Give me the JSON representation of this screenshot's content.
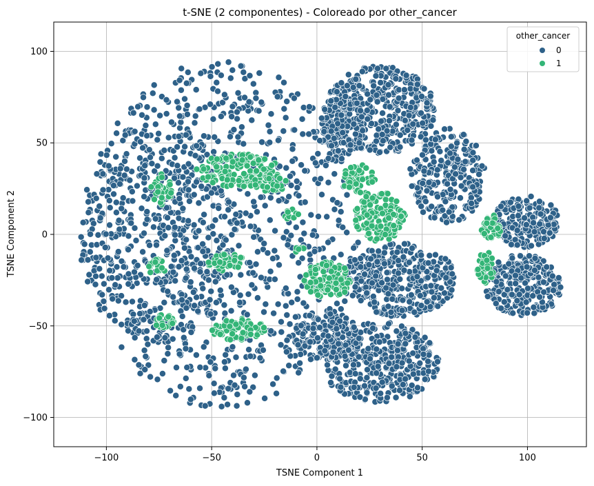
{
  "chart_data": {
    "type": "scatter",
    "title": "t-SNE (2 componentes) - Coloreado por other_cancer",
    "xlabel": "TSNE Component 1",
    "ylabel": "TSNE Component 2",
    "xlim": [
      -125,
      128
    ],
    "ylim": [
      -116,
      116
    ],
    "x_ticks": [
      -100,
      -50,
      0,
      50,
      100
    ],
    "y_ticks": [
      -100,
      -50,
      0,
      50,
      100
    ],
    "x_tick_labels": [
      "−100",
      "−50",
      "0",
      "50",
      "100"
    ],
    "y_tick_labels": [
      "−100",
      "−50",
      "0",
      "50",
      "100"
    ],
    "grid": true,
    "legend": {
      "title": "other_cancer",
      "placement": "top-right",
      "entries": [
        {
          "label": "0",
          "color": "#2e6189"
        },
        {
          "label": "1",
          "color": "#33b577"
        }
      ]
    },
    "series": [
      {
        "name": "0",
        "color": "#2e6189",
        "clusters": [
          {
            "x": 30,
            "y": 68,
            "rx": 26,
            "ry": 24,
            "n": 420
          },
          {
            "x": 62,
            "y": 32,
            "rx": 18,
            "ry": 26,
            "n": 260
          },
          {
            "x": 99,
            "y": 7,
            "rx": 16,
            "ry": 14,
            "n": 200
          },
          {
            "x": 98,
            "y": -28,
            "rx": 18,
            "ry": 17,
            "n": 260
          },
          {
            "x": 40,
            "y": -25,
            "rx": 26,
            "ry": 20,
            "n": 360
          },
          {
            "x": 30,
            "y": -70,
            "rx": 28,
            "ry": 22,
            "n": 380
          },
          {
            "x": 5,
            "y": -55,
            "rx": 16,
            "ry": 14,
            "n": 140
          },
          {
            "x": 12,
            "y": 60,
            "rx": 10,
            "ry": 18,
            "n": 120
          },
          {
            "x": -45,
            "y": 0,
            "rx": 65,
            "ry": 95,
            "n": 900
          },
          {
            "x": -75,
            "y": 0,
            "rx": 38,
            "ry": 60,
            "n": 360
          }
        ]
      },
      {
        "name": "1",
        "color": "#33b577",
        "clusters": [
          {
            "x": -38,
            "y": 35,
            "rx": 20,
            "ry": 9,
            "n": 150
          },
          {
            "x": -22,
            "y": 28,
            "rx": 8,
            "ry": 5,
            "n": 30
          },
          {
            "x": 20,
            "y": 30,
            "rx": 8,
            "ry": 8,
            "n": 50
          },
          {
            "x": 30,
            "y": 10,
            "rx": 12,
            "ry": 14,
            "n": 140
          },
          {
            "x": 5,
            "y": -25,
            "rx": 11,
            "ry": 10,
            "n": 110
          },
          {
            "x": -43,
            "y": -15,
            "rx": 9,
            "ry": 5,
            "n": 45
          },
          {
            "x": -74,
            "y": 25,
            "rx": 5,
            "ry": 9,
            "n": 35
          },
          {
            "x": -76,
            "y": -18,
            "rx": 4,
            "ry": 5,
            "n": 22
          },
          {
            "x": -73,
            "y": -47,
            "rx": 5,
            "ry": 4,
            "n": 22
          },
          {
            "x": -37,
            "y": -52,
            "rx": 13,
            "ry": 6,
            "n": 70
          },
          {
            "x": 83,
            "y": 4,
            "rx": 5,
            "ry": 7,
            "n": 35
          },
          {
            "x": 80,
            "y": -18,
            "rx": 4,
            "ry": 9,
            "n": 35
          },
          {
            "x": -12,
            "y": 11,
            "rx": 4,
            "ry": 3,
            "n": 10
          },
          {
            "x": -9,
            "y": -8,
            "rx": 3,
            "ry": 3,
            "n": 6
          }
        ]
      }
    ]
  }
}
